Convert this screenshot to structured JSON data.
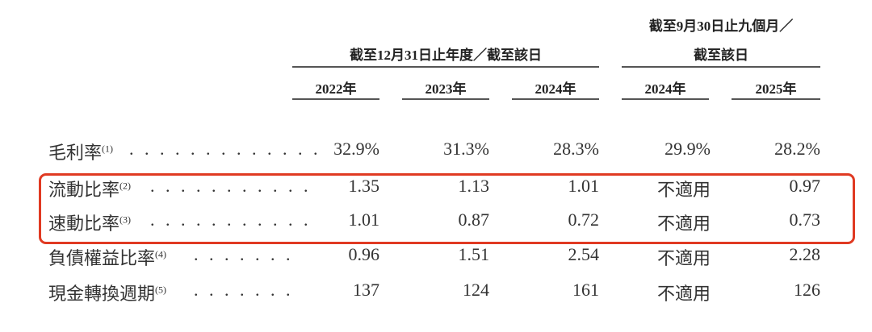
{
  "header": {
    "group_annual": "截至12月31日止年度／截至該日",
    "group_interim_line1": "截至9月30日止九個月／",
    "group_interim_line2": "截至該日",
    "years": [
      "2022年",
      "2023年",
      "2024年",
      "2024年",
      "2025年"
    ]
  },
  "rows": [
    {
      "label": "毛利率",
      "note": "(1)",
      "dots": ". . . . . . . . . . . . .",
      "values": [
        "32.9%",
        "31.3%",
        "28.3%",
        "29.9%",
        "28.2%"
      ]
    },
    {
      "label": "流動比率",
      "note": "(2)",
      "dots": ". . . . . . . . . . .",
      "values": [
        "1.35",
        "1.13",
        "1.01",
        "不適用",
        "0.97"
      ]
    },
    {
      "label": "速動比率",
      "note": "(3)",
      "dots": ". . . . . . . . . . .",
      "values": [
        "1.01",
        "0.87",
        "0.72",
        "不適用",
        "0.73"
      ]
    },
    {
      "label": "負債權益比率",
      "note": "(4)",
      "dots": ". . . . . . .",
      "values": [
        "0.96",
        "1.51",
        "2.54",
        "不適用",
        "2.28"
      ]
    },
    {
      "label": "現金轉換週期",
      "note": "(5)",
      "dots": ". . . . . . .",
      "values": [
        "137",
        "124",
        "161",
        "不適用",
        "126"
      ]
    }
  ],
  "highlight": {
    "color": "#e03a22"
  }
}
